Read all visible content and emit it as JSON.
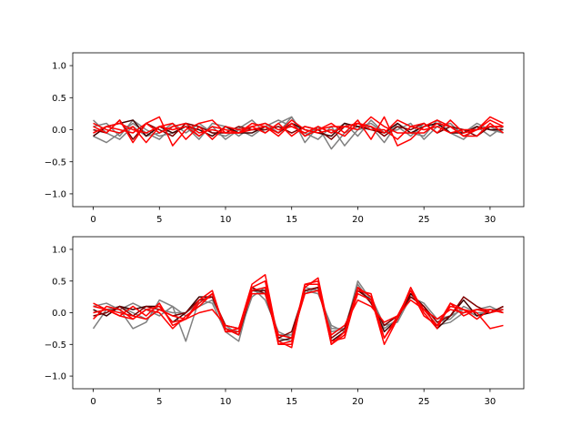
{
  "chart_data": [
    {
      "type": "line",
      "title": "",
      "xlabel": "",
      "ylabel": "",
      "xlim": [
        -1.55,
        32.55
      ],
      "ylim": [
        -1.2,
        1.2
      ],
      "xticks": [
        0,
        5,
        10,
        15,
        20,
        25,
        30
      ],
      "yticks": [
        -1.0,
        -0.5,
        0.0,
        0.5,
        1.0
      ],
      "xtick_labels": [
        "0",
        "5",
        "10",
        "15",
        "20",
        "25",
        "30"
      ],
      "ytick_labels": [
        "−1.0",
        "−0.5",
        "0.0",
        "0.5",
        "1.0"
      ],
      "grid": false,
      "x": [
        0,
        1,
        2,
        3,
        4,
        5,
        6,
        7,
        8,
        9,
        10,
        11,
        12,
        13,
        14,
        15,
        16,
        17,
        18,
        19,
        20,
        21,
        22,
        23,
        24,
        25,
        26,
        27,
        28,
        29,
        30,
        31
      ],
      "series": [
        {
          "color": "#808080",
          "values": [
            0.15,
            -0.05,
            -0.15,
            0.05,
            -0.1,
            -0.05,
            0.1,
            -0.05,
            0.1,
            -0.05,
            -0.1,
            0.02,
            0.15,
            -0.05,
            0.1,
            0.2,
            -0.2,
            0.05,
            -0.3,
            -0.05,
            0.05,
            0.1,
            -0.05,
            0.05,
            -0.1,
            0.1,
            -0.05,
            0.05,
            -0.05,
            0.1,
            0.0,
            -0.05
          ]
        },
        {
          "color": "#808080",
          "values": [
            -0.1,
            -0.2,
            -0.05,
            0.1,
            -0.05,
            -0.15,
            0.05,
            0.1,
            -0.1,
            0.05,
            -0.15,
            0.0,
            -0.1,
            0.05,
            0.15,
            0.05,
            -0.05,
            -0.15,
            0.05,
            -0.25,
            0.0,
            0.05,
            -0.2,
            0.1,
            -0.05,
            -0.1,
            0.15,
            -0.05,
            -0.15,
            0.05,
            -0.1,
            0.05
          ]
        },
        {
          "color": "#808080",
          "values": [
            0.05,
            0.1,
            -0.1,
            0.15,
            0.0,
            -0.1,
            -0.05,
            0.05,
            -0.15,
            0.1,
            0.05,
            -0.1,
            0.05,
            0.1,
            -0.05,
            0.2,
            -0.1,
            0.05,
            -0.05,
            0.1,
            -0.1,
            0.15,
            -0.05,
            0.0,
            0.1,
            -0.15,
            0.05,
            0.1,
            -0.1,
            0.0,
            0.05,
            -0.05
          ]
        },
        {
          "color": "#400000",
          "values": [
            -0.1,
            0.05,
            0.1,
            0.15,
            -0.1,
            0.05,
            -0.05,
            0.05,
            0.0,
            -0.1,
            0.05,
            -0.05,
            -0.05,
            0.05,
            -0.05,
            0.1,
            0.0,
            -0.05,
            -0.1,
            0.1,
            0.05,
            0.0,
            -0.05,
            0.1,
            -0.05,
            0.05,
            0.1,
            -0.05,
            -0.05,
            0.05,
            0.0,
            0.0
          ]
        },
        {
          "color": "#800000",
          "values": [
            0.0,
            -0.05,
            0.15,
            -0.15,
            0.1,
            0.0,
            -0.1,
            0.1,
            0.05,
            -0.05,
            -0.05,
            0.05,
            0.0,
            0.0,
            0.05,
            -0.05,
            0.05,
            0.0,
            -0.15,
            0.05,
            0.1,
            0.05,
            -0.1,
            0.05,
            0.0,
            0.1,
            -0.05,
            0.05,
            0.0,
            -0.1,
            0.05,
            0.05
          ]
        },
        {
          "color": "#ff0000",
          "values": [
            0.05,
            -0.05,
            0.15,
            -0.2,
            0.1,
            0.2,
            -0.25,
            0.0,
            0.1,
            0.15,
            -0.05,
            -0.05,
            0.1,
            0.05,
            -0.05,
            0.15,
            0.0,
            -0.05,
            0.0,
            -0.1,
            0.1,
            0.05,
            -0.05,
            0.15,
            0.05,
            0.1,
            -0.05,
            0.15,
            -0.05,
            0.0,
            0.15,
            0.05
          ]
        },
        {
          "color": "#ff0000",
          "values": [
            -0.05,
            0.05,
            0.1,
            0.0,
            -0.05,
            0.05,
            0.1,
            -0.15,
            0.05,
            -0.15,
            0.05,
            0.0,
            0.05,
            -0.05,
            0.1,
            -0.1,
            0.05,
            0.0,
            0.1,
            -0.05,
            0.15,
            -0.15,
            0.2,
            -0.25,
            -0.15,
            0.05,
            0.15,
            0.05,
            -0.1,
            -0.1,
            0.1,
            -0.05
          ]
        },
        {
          "color": "#ff0000",
          "values": [
            0.1,
            0.0,
            -0.05,
            0.05,
            -0.2,
            0.05,
            0.0,
            0.05,
            -0.1,
            0.05,
            0.0,
            -0.05,
            0.0,
            0.05,
            -0.1,
            0.1,
            -0.1,
            0.0,
            0.05,
            0.05,
            0.1,
            0.0,
            0.0,
            -0.15,
            0.05,
            0.0,
            0.05,
            -0.05,
            0.0,
            0.0,
            0.2,
            0.1
          ]
        },
        {
          "color": "#ff0000",
          "values": [
            -0.05,
            0.05,
            0.0,
            -0.05,
            0.1,
            -0.05,
            0.05,
            0.1,
            -0.05,
            0.0,
            -0.05,
            -0.05,
            0.05,
            0.1,
            0.0,
            0.05,
            -0.05,
            0.05,
            -0.05,
            0.05,
            0.0,
            0.2,
            0.05,
            -0.05,
            -0.05,
            -0.05,
            0.1,
            0.05,
            -0.1,
            0.0,
            0.05,
            0.05
          ]
        }
      ]
    },
    {
      "type": "line",
      "title": "",
      "xlabel": "",
      "ylabel": "",
      "xlim": [
        -1.55,
        32.55
      ],
      "ylim": [
        -1.2,
        1.2
      ],
      "xticks": [
        0,
        5,
        10,
        15,
        20,
        25,
        30
      ],
      "yticks": [
        -1.0,
        -0.5,
        0.0,
        0.5,
        1.0
      ],
      "xtick_labels": [
        "0",
        "5",
        "10",
        "15",
        "20",
        "25",
        "30"
      ],
      "ytick_labels": [
        "−1.0",
        "−0.5",
        "0.0",
        "0.5",
        "1.0"
      ],
      "grid": false,
      "x": [
        0,
        1,
        2,
        3,
        4,
        5,
        6,
        7,
        8,
        9,
        10,
        11,
        12,
        13,
        14,
        15,
        16,
        17,
        18,
        19,
        20,
        21,
        22,
        23,
        24,
        25,
        26,
        27,
        28,
        29,
        30,
        31
      ],
      "series": [
        {
          "color": "#808080",
          "values": [
            -0.25,
            0.05,
            0.05,
            -0.25,
            -0.15,
            0.2,
            0.1,
            -0.45,
            0.2,
            0.15,
            -0.3,
            -0.45,
            0.35,
            0.3,
            -0.4,
            -0.45,
            0.35,
            0.3,
            -0.2,
            -0.3,
            0.5,
            0.2,
            -0.25,
            -0.1,
            0.3,
            0.05,
            -0.2,
            -0.15,
            0.0,
            0.05,
            0.1,
            0.0
          ]
        },
        {
          "color": "#808080",
          "values": [
            0.1,
            0.15,
            0.05,
            0.15,
            0.05,
            -0.05,
            0.1,
            -0.05,
            0.1,
            0.2,
            -0.2,
            -0.35,
            0.25,
            0.4,
            -0.35,
            -0.35,
            0.3,
            0.4,
            -0.3,
            -0.25,
            0.45,
            0.15,
            -0.2,
            -0.05,
            0.25,
            0.15,
            -0.1,
            -0.05,
            0.05,
            -0.05,
            0.05,
            0.05
          ]
        },
        {
          "color": "#808080",
          "values": [
            0.0,
            0.05,
            0.1,
            0.0,
            -0.1,
            0.05,
            0.0,
            0.0,
            0.15,
            0.3,
            -0.25,
            -0.3,
            0.4,
            0.2,
            -0.3,
            -0.4,
            0.4,
            0.35,
            -0.25,
            -0.25,
            0.4,
            0.25,
            -0.2,
            -0.15,
            0.25,
            0.1,
            -0.15,
            -0.1,
            0.1,
            0.0,
            0.0,
            0.05
          ]
        },
        {
          "color": "#400000",
          "values": [
            0.05,
            -0.05,
            0.1,
            0.05,
            0.1,
            0.1,
            -0.15,
            0.0,
            0.25,
            0.25,
            -0.25,
            -0.35,
            0.35,
            0.35,
            -0.45,
            -0.4,
            0.35,
            0.4,
            -0.45,
            -0.3,
            0.35,
            0.2,
            -0.3,
            -0.1,
            0.3,
            0.1,
            -0.25,
            -0.05,
            0.2,
            -0.05,
            0.0,
            0.1
          ]
        },
        {
          "color": "#800000",
          "values": [
            -0.05,
            0.0,
            0.1,
            -0.05,
            0.1,
            0.05,
            -0.05,
            0.0,
            0.2,
            0.25,
            -0.2,
            -0.25,
            0.4,
            0.3,
            -0.4,
            -0.3,
            0.35,
            0.4,
            -0.4,
            -0.25,
            0.4,
            0.15,
            -0.2,
            -0.05,
            0.25,
            0.1,
            -0.15,
            -0.05,
            0.25,
            0.1,
            0.0,
            0.1
          ]
        },
        {
          "color": "#ff0000",
          "values": [
            0.15,
            0.05,
            -0.05,
            0.1,
            -0.05,
            0.15,
            -0.2,
            -0.1,
            0.2,
            0.35,
            -0.3,
            -0.25,
            0.45,
            0.6,
            -0.45,
            -0.55,
            0.45,
            0.5,
            -0.5,
            -0.35,
            0.4,
            0.25,
            -0.5,
            -0.1,
            0.4,
            0.0,
            -0.25,
            0.15,
            0.05,
            0.0,
            -0.25,
            -0.2
          ]
        },
        {
          "color": "#ff0000",
          "values": [
            -0.1,
            0.1,
            0.05,
            -0.1,
            0.05,
            0.1,
            -0.15,
            -0.1,
            0.15,
            0.3,
            -0.25,
            -0.35,
            0.4,
            0.5,
            -0.5,
            -0.5,
            0.4,
            0.55,
            -0.45,
            -0.4,
            0.35,
            0.3,
            -0.4,
            -0.05,
            0.35,
            0.05,
            -0.2,
            0.15,
            -0.05,
            0.05,
            0.05,
            0.0
          ]
        },
        {
          "color": "#ff0000",
          "values": [
            0.1,
            0.05,
            -0.05,
            -0.1,
            0.05,
            0.0,
            -0.25,
            -0.05,
            0.1,
            0.3,
            -0.3,
            -0.3,
            0.35,
            0.4,
            -0.5,
            -0.45,
            0.45,
            0.45,
            -0.5,
            -0.3,
            0.3,
            0.2,
            -0.4,
            -0.1,
            0.35,
            -0.05,
            -0.2,
            0.1,
            0.05,
            -0.1,
            0.05,
            0.0
          ]
        },
        {
          "color": "#ff0000",
          "values": [
            0.0,
            0.05,
            0.0,
            -0.05,
            -0.1,
            0.05,
            -0.05,
            -0.1,
            0.0,
            0.05,
            -0.2,
            -0.25,
            0.3,
            0.3,
            -0.35,
            -0.4,
            0.3,
            0.35,
            -0.35,
            -0.2,
            0.2,
            0.1,
            -0.15,
            -0.05,
            0.2,
            0.05,
            -0.1,
            0.05,
            0.0,
            0.05,
            0.0,
            0.05
          ]
        }
      ]
    }
  ]
}
